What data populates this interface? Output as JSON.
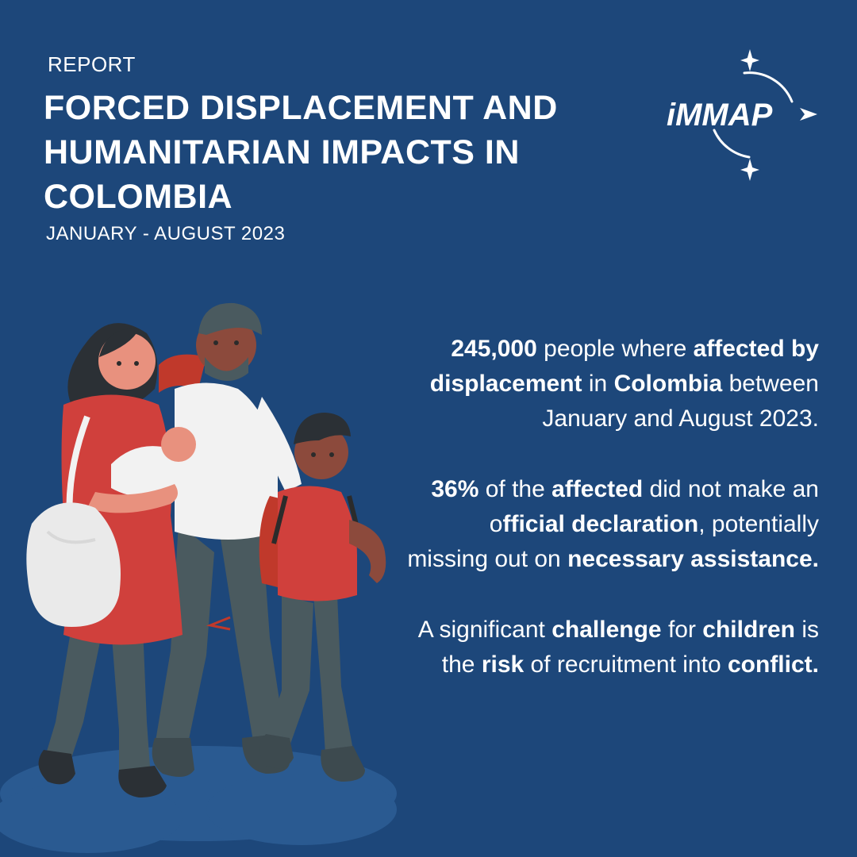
{
  "header": {
    "kicker": "REPORT",
    "title_lines": [
      "FORCED DISPLACEMENT AND",
      "HUMANITARIAN IMPACTS IN",
      "COLOMBIA"
    ],
    "date_range": "JANUARY - AUGUST 2023"
  },
  "logo": {
    "text": "iMMAP",
    "icon": "compass-arrow-icon"
  },
  "facts": [
    {
      "parts": [
        {
          "t": "245,000",
          "b": true
        },
        {
          "t": " people where ",
          "b": false
        },
        {
          "t": "affected by displacement",
          "b": true
        },
        {
          "t": " in ",
          "b": false
        },
        {
          "t": "Colombia",
          "b": true
        },
        {
          "t": " between January and August 2023.",
          "b": false
        }
      ]
    },
    {
      "parts": [
        {
          "t": "36%",
          "b": true
        },
        {
          "t": " of the ",
          "b": false
        },
        {
          "t": "affected",
          "b": true
        },
        {
          "t": " did not make an o",
          "b": false
        },
        {
          "t": "fficial declaration",
          "b": true
        },
        {
          "t": ", potentially missing out on ",
          "b": false
        },
        {
          "t": "necessary assistance.",
          "b": true
        }
      ]
    },
    {
      "parts": [
        {
          "t": "A significant ",
          "b": false
        },
        {
          "t": "challenge",
          "b": true
        },
        {
          "t": " for ",
          "b": false
        },
        {
          "t": "children",
          "b": true
        },
        {
          "t": " is the ",
          "b": false
        },
        {
          "t": "risk",
          "b": true
        },
        {
          "t": " of recruitment into ",
          "b": false
        },
        {
          "t": "conflict.",
          "b": true
        }
      ]
    }
  ],
  "illustration": {
    "icon": "displaced-family-illustration"
  },
  "colors": {
    "background": "#1d477a",
    "text": "#ffffff",
    "accent_red": "#d0403c",
    "pants_gray": "#4a5a5f"
  }
}
